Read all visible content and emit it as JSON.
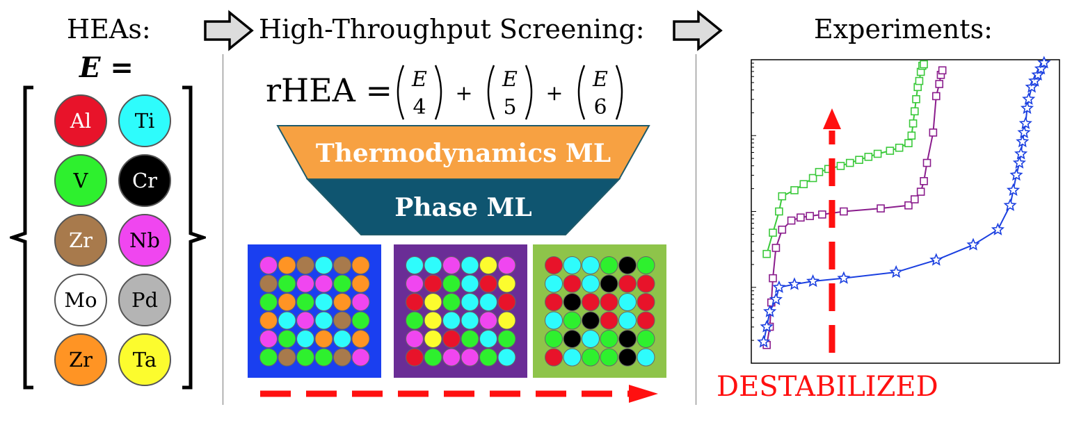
{
  "headings": {
    "heas": "HEAs:",
    "screening": "High-Throughput Screening:",
    "experiments": "Experiments:"
  },
  "set_label": "E =",
  "elements": [
    {
      "symbol": "Al",
      "fill": "#e8132a",
      "text": "#ffffff"
    },
    {
      "symbol": "Ti",
      "fill": "#2efcfc",
      "text": "#000000"
    },
    {
      "symbol": "V",
      "fill": "#2ef02e",
      "text": "#000000"
    },
    {
      "symbol": "Cr",
      "fill": "#000000",
      "text": "#ffffff"
    },
    {
      "symbol": "Zr",
      "fill": "#a87a4c",
      "text": "#ffffff"
    },
    {
      "symbol": "Nb",
      "fill": "#f046f0",
      "text": "#000000"
    },
    {
      "symbol": "Mo",
      "fill": "#ffffff",
      "text": "#000000"
    },
    {
      "symbol": "Pd",
      "fill": "#b4b4b4",
      "text": "#000000"
    },
    {
      "symbol": "Zr",
      "fill": "#ff9424",
      "text": "#000000"
    },
    {
      "symbol": "Ta",
      "fill": "#fcfc2e",
      "text": "#000000"
    }
  ],
  "equation": {
    "lhs": "rHEA =",
    "set": "E",
    "k": [
      "4",
      "5",
      "6"
    ],
    "op": "+"
  },
  "funnel": {
    "top_label": "Thermodynamics ML",
    "top_color": "#f7a142",
    "bottom_label": "Phase ML",
    "bottom_color": "#0f5570"
  },
  "lattices": [
    {
      "bg": "#1a3ff0",
      "rows": [
        [
          "#f046f0",
          "#ff9424",
          "#a87a4c",
          "#2efcfc",
          "#a87a4c",
          "#ff9424"
        ],
        [
          "#a87a4c",
          "#2ef02e",
          "#f046f0",
          "#f046f0",
          "#2ef02e",
          "#ff9424"
        ],
        [
          "#2ef02e",
          "#ff9424",
          "#2ef02e",
          "#2efcfc",
          "#ff9424",
          "#f046f0"
        ],
        [
          "#ff9424",
          "#2efcfc",
          "#f046f0",
          "#2efcfc",
          "#a87a4c",
          "#2ef02e"
        ],
        [
          "#f046f0",
          "#2ef02e",
          "#2efcfc",
          "#ff9424",
          "#2efcfc",
          "#ff9424"
        ],
        [
          "#2ef02e",
          "#a87a4c",
          "#2ef02e",
          "#2ef02e",
          "#a87a4c",
          "#f046f0"
        ]
      ]
    },
    {
      "bg": "#6a2d96",
      "rows": [
        [
          "#2efcfc",
          "#2efcfc",
          "#f046f0",
          "#2efcfc",
          "#fcfc2e",
          "#f046f0"
        ],
        [
          "#f046f0",
          "#e8132a",
          "#2ef02e",
          "#2efcfc",
          "#e8132a",
          "#fcfc2e"
        ],
        [
          "#e8132a",
          "#fcfc2e",
          "#2ef02e",
          "#2efcfc",
          "#2efcfc",
          "#e8132a"
        ],
        [
          "#2ef02e",
          "#fcfc2e",
          "#2efcfc",
          "#2efcfc",
          "#f046f0",
          "#fcfc2e"
        ],
        [
          "#f046f0",
          "#fcfc2e",
          "#e8132a",
          "#2ef02e",
          "#2efcfc",
          "#2ef02e"
        ],
        [
          "#e8132a",
          "#2ef02e",
          "#f046f0",
          "#f046f0",
          "#2ef02e",
          "#2efcfc"
        ]
      ]
    },
    {
      "bg": "#8ec44a",
      "rows": [
        [
          "#e8132a",
          "#2efcfc",
          "#2efcfc",
          "#2ef02e",
          "#000000",
          "#2ef02e"
        ],
        [
          "#2efcfc",
          "#e8132a",
          "#2efcfc",
          "#000000",
          "#e8132a",
          "#e8132a"
        ],
        [
          "#e8132a",
          "#000000",
          "#e8132a",
          "#e8132a",
          "#2efcfc",
          "#e8132a"
        ],
        [
          "#2efcfc",
          "#2ef02e",
          "#000000",
          "#e8132a",
          "#2efcfc",
          "#e8132a"
        ],
        [
          "#2ef02e",
          "#000000",
          "#2efcfc",
          "#2ef02e",
          "#000000",
          "#2ef02e"
        ],
        [
          "#e8132a",
          "#2efcfc",
          "#2ef02e",
          "#2ef02e",
          "#000000",
          "#2efcfc"
        ]
      ]
    }
  ],
  "destabilized_label": "DESTABILIZED",
  "accent_red": "#ff1010",
  "chart_data": {
    "type": "line",
    "title": "",
    "xlabel": "",
    "ylabel": "",
    "xlim": [
      0,
      1
    ],
    "ylim": [
      0,
      1
    ],
    "yscale": "log",
    "series": [
      {
        "color": "#3ac93a",
        "marker": "square",
        "points": [
          [
            0.05,
            0.36
          ],
          [
            0.07,
            0.43
          ],
          [
            0.09,
            0.5
          ],
          [
            0.1,
            0.55
          ],
          [
            0.14,
            0.57
          ],
          [
            0.17,
            0.59
          ],
          [
            0.2,
            0.61
          ],
          [
            0.22,
            0.63
          ],
          [
            0.25,
            0.64
          ],
          [
            0.29,
            0.65
          ],
          [
            0.32,
            0.66
          ],
          [
            0.35,
            0.67
          ],
          [
            0.38,
            0.68
          ],
          [
            0.41,
            0.69
          ],
          [
            0.45,
            0.7
          ],
          [
            0.48,
            0.71
          ],
          [
            0.51,
            0.725
          ],
          [
            0.52,
            0.75
          ],
          [
            0.525,
            0.79
          ],
          [
            0.53,
            0.83
          ],
          [
            0.535,
            0.87
          ],
          [
            0.54,
            0.91
          ],
          [
            0.545,
            0.93
          ],
          [
            0.55,
            0.96
          ],
          [
            0.555,
            0.98
          ],
          [
            0.56,
            0.985
          ]
        ]
      },
      {
        "color": "#8a1c8c",
        "marker": "square",
        "points": [
          [
            0.05,
            0.06
          ],
          [
            0.06,
            0.12
          ],
          [
            0.065,
            0.2
          ],
          [
            0.07,
            0.28
          ],
          [
            0.08,
            0.38
          ],
          [
            0.1,
            0.44
          ],
          [
            0.13,
            0.47
          ],
          [
            0.16,
            0.48
          ],
          [
            0.19,
            0.485
          ],
          [
            0.23,
            0.49
          ],
          [
            0.3,
            0.5
          ],
          [
            0.42,
            0.51
          ],
          [
            0.51,
            0.52
          ],
          [
            0.53,
            0.54
          ],
          [
            0.55,
            0.565
          ],
          [
            0.56,
            0.6
          ],
          [
            0.57,
            0.66
          ],
          [
            0.59,
            0.76
          ],
          [
            0.6,
            0.88
          ],
          [
            0.61,
            0.92
          ],
          [
            0.615,
            0.95
          ],
          [
            0.62,
            0.965
          ]
        ]
      },
      {
        "color": "#1a3fe0",
        "marker": "star",
        "points": [
          [
            0.04,
            0.07
          ],
          [
            0.05,
            0.12
          ],
          [
            0.06,
            0.17
          ],
          [
            0.08,
            0.21
          ],
          [
            0.09,
            0.25
          ],
          [
            0.14,
            0.26
          ],
          [
            0.2,
            0.27
          ],
          [
            0.3,
            0.28
          ],
          [
            0.47,
            0.3
          ],
          [
            0.6,
            0.34
          ],
          [
            0.72,
            0.39
          ],
          [
            0.8,
            0.44
          ],
          [
            0.84,
            0.52
          ],
          [
            0.85,
            0.57
          ],
          [
            0.86,
            0.62
          ],
          [
            0.87,
            0.66
          ],
          [
            0.875,
            0.69
          ],
          [
            0.88,
            0.73
          ],
          [
            0.885,
            0.76
          ],
          [
            0.89,
            0.79
          ],
          [
            0.895,
            0.84
          ],
          [
            0.9,
            0.87
          ],
          [
            0.91,
            0.91
          ],
          [
            0.92,
            0.93
          ],
          [
            0.93,
            0.95
          ],
          [
            0.94,
            0.97
          ],
          [
            0.95,
            0.99
          ]
        ]
      }
    ]
  }
}
